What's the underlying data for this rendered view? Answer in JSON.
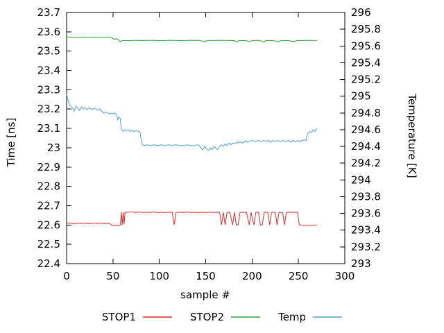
{
  "chart_data": {
    "type": "line",
    "title": "",
    "xlabel": "sample #",
    "ylabel": "Time [ns]",
    "y2label": "Temperature [K]",
    "xlim": [
      0,
      300
    ],
    "ylim": [
      22.4,
      23.7
    ],
    "y2lim": [
      293,
      296
    ],
    "grid": false,
    "legend_position": "bottom-center",
    "x_tick_labels": [
      "0",
      "50",
      "100",
      "150",
      "200",
      "250",
      "300"
    ],
    "x_tick_values": [
      0,
      50,
      100,
      150,
      200,
      250,
      300
    ],
    "y_tick_labels": [
      "22.4",
      "22.5",
      "22.6",
      "22.7",
      "22.8",
      "22.9",
      "23",
      "23.1",
      "23.2",
      "23.3",
      "23.4",
      "23.5",
      "23.6",
      "23.7"
    ],
    "y_tick_values": [
      22.4,
      22.5,
      22.6,
      22.7,
      22.8,
      22.9,
      23.0,
      23.1,
      23.2,
      23.3,
      23.4,
      23.5,
      23.6,
      23.7
    ],
    "y2_tick_labels": [
      "293",
      "293.2",
      "293.4",
      "293.6",
      "293.8",
      "294",
      "294.2",
      "294.4",
      "294.6",
      "294.8",
      "295",
      "295.2",
      "295.4",
      "295.6",
      "295.8",
      "296"
    ],
    "y2_tick_values": [
      293,
      293.2,
      293.4,
      293.6,
      293.8,
      294,
      294.2,
      294.4,
      294.6,
      294.8,
      295,
      295.2,
      295.4,
      295.6,
      295.8,
      296
    ],
    "series": [
      {
        "name": "STOP1",
        "color": "#d62a2a",
        "axis": "y",
        "points": [
          [
            0,
            22.61
          ],
          [
            4,
            22.61
          ],
          [
            8,
            22.605
          ],
          [
            12,
            22.61
          ],
          [
            16,
            22.608
          ],
          [
            20,
            22.61
          ],
          [
            24,
            22.606
          ],
          [
            28,
            22.61
          ],
          [
            32,
            22.608
          ],
          [
            36,
            22.61
          ],
          [
            40,
            22.607
          ],
          [
            44,
            22.61
          ],
          [
            47,
            22.605
          ],
          [
            49,
            22.6
          ],
          [
            51,
            22.596
          ],
          [
            53,
            22.6
          ],
          [
            55,
            22.595
          ],
          [
            57,
            22.6
          ],
          [
            58,
            22.6
          ],
          [
            59,
            22.665
          ],
          [
            60,
            22.6
          ],
          [
            61,
            22.665
          ],
          [
            62,
            22.605
          ],
          [
            63,
            22.665
          ],
          [
            66,
            22.666
          ],
          [
            70,
            22.668
          ],
          [
            74,
            22.665
          ],
          [
            78,
            22.667
          ],
          [
            82,
            22.665
          ],
          [
            86,
            22.666
          ],
          [
            90,
            22.665
          ],
          [
            94,
            22.667
          ],
          [
            98,
            22.665
          ],
          [
            102,
            22.666
          ],
          [
            106,
            22.665
          ],
          [
            110,
            22.666
          ],
          [
            114,
            22.665
          ],
          [
            116,
            22.6
          ],
          [
            118,
            22.665
          ],
          [
            122,
            22.666
          ],
          [
            126,
            22.665
          ],
          [
            130,
            22.667
          ],
          [
            134,
            22.665
          ],
          [
            138,
            22.666
          ],
          [
            142,
            22.665
          ],
          [
            146,
            22.666
          ],
          [
            150,
            22.665
          ],
          [
            154,
            22.666
          ],
          [
            158,
            22.665
          ],
          [
            162,
            22.666
          ],
          [
            165,
            22.665
          ],
          [
            167,
            22.6
          ],
          [
            169,
            22.665
          ],
          [
            171,
            22.6
          ],
          [
            173,
            22.665
          ],
          [
            176,
            22.666
          ],
          [
            179,
            22.6
          ],
          [
            181,
            22.665
          ],
          [
            183,
            22.6
          ],
          [
            185,
            22.6
          ],
          [
            187,
            22.665
          ],
          [
            190,
            22.666
          ],
          [
            194,
            22.665
          ],
          [
            197,
            22.6
          ],
          [
            199,
            22.665
          ],
          [
            202,
            22.6
          ],
          [
            204,
            22.665
          ],
          [
            207,
            22.666
          ],
          [
            209,
            22.6
          ],
          [
            211,
            22.6
          ],
          [
            213,
            22.665
          ],
          [
            217,
            22.666
          ],
          [
            219,
            22.6
          ],
          [
            221,
            22.665
          ],
          [
            225,
            22.666
          ],
          [
            227,
            22.6
          ],
          [
            229,
            22.665
          ],
          [
            233,
            22.665
          ],
          [
            235,
            22.6
          ],
          [
            237,
            22.665
          ],
          [
            241,
            22.666
          ],
          [
            245,
            22.665
          ],
          [
            249,
            22.666
          ],
          [
            251,
            22.6
          ],
          [
            253,
            22.6
          ],
          [
            256,
            22.598
          ],
          [
            259,
            22.6
          ],
          [
            262,
            22.598
          ],
          [
            265,
            22.6
          ],
          [
            268,
            22.599
          ],
          [
            270,
            22.6
          ]
        ]
      },
      {
        "name": "STOP2",
        "color": "#2aa22a",
        "axis": "y",
        "points": [
          [
            0,
            23.575
          ],
          [
            4,
            23.57
          ],
          [
            8,
            23.572
          ],
          [
            12,
            23.57
          ],
          [
            16,
            23.571
          ],
          [
            20,
            23.57
          ],
          [
            24,
            23.572
          ],
          [
            28,
            23.57
          ],
          [
            32,
            23.571
          ],
          [
            36,
            23.57
          ],
          [
            40,
            23.57
          ],
          [
            44,
            23.571
          ],
          [
            48,
            23.57
          ],
          [
            50,
            23.565
          ],
          [
            52,
            23.56
          ],
          [
            54,
            23.565
          ],
          [
            56,
            23.558
          ],
          [
            58,
            23.548
          ],
          [
            60,
            23.555
          ],
          [
            65,
            23.554
          ],
          [
            70,
            23.555
          ],
          [
            75,
            23.556
          ],
          [
            80,
            23.555
          ],
          [
            86,
            23.555
          ],
          [
            92,
            23.556
          ],
          [
            98,
            23.555
          ],
          [
            105,
            23.555
          ],
          [
            112,
            23.556
          ],
          [
            120,
            23.555
          ],
          [
            128,
            23.555
          ],
          [
            136,
            23.556
          ],
          [
            144,
            23.555
          ],
          [
            149,
            23.548
          ],
          [
            151,
            23.555
          ],
          [
            158,
            23.555
          ],
          [
            165,
            23.556
          ],
          [
            172,
            23.555
          ],
          [
            180,
            23.555
          ],
          [
            184,
            23.548
          ],
          [
            186,
            23.555
          ],
          [
            193,
            23.555
          ],
          [
            198,
            23.549
          ],
          [
            200,
            23.555
          ],
          [
            207,
            23.556
          ],
          [
            213,
            23.548
          ],
          [
            215,
            23.555
          ],
          [
            222,
            23.555
          ],
          [
            229,
            23.549
          ],
          [
            231,
            23.555
          ],
          [
            238,
            23.555
          ],
          [
            246,
            23.549
          ],
          [
            248,
            23.555
          ],
          [
            255,
            23.555
          ],
          [
            262,
            23.556
          ],
          [
            270,
            23.555
          ]
        ]
      },
      {
        "name": "Temp",
        "color": "#4aa2d4",
        "axis": "y2",
        "points": [
          [
            0,
            295.02
          ],
          [
            1,
            294.98
          ],
          [
            3,
            294.9
          ],
          [
            5,
            294.88
          ],
          [
            7,
            294.85
          ],
          [
            8,
            294.82
          ],
          [
            10,
            294.88
          ],
          [
            12,
            294.86
          ],
          [
            14,
            294.83
          ],
          [
            16,
            294.87
          ],
          [
            18,
            294.85
          ],
          [
            20,
            294.86
          ],
          [
            22,
            294.84
          ],
          [
            24,
            294.86
          ],
          [
            26,
            294.85
          ],
          [
            28,
            294.84
          ],
          [
            30,
            294.86
          ],
          [
            32,
            294.85
          ],
          [
            34,
            294.83
          ],
          [
            36,
            294.85
          ],
          [
            38,
            294.82
          ],
          [
            40,
            294.8
          ],
          [
            42,
            294.81
          ],
          [
            44,
            294.8
          ],
          [
            46,
            294.79
          ],
          [
            48,
            294.8
          ],
          [
            50,
            294.79
          ],
          [
            52,
            294.8
          ],
          [
            54,
            294.78
          ],
          [
            55,
            294.72
          ],
          [
            56,
            294.75
          ],
          [
            58,
            294.73
          ],
          [
            59,
            294.6
          ],
          [
            61,
            294.58
          ],
          [
            63,
            294.6
          ],
          [
            65,
            294.59
          ],
          [
            67,
            294.6
          ],
          [
            69,
            294.58
          ],
          [
            71,
            294.59
          ],
          [
            73,
            294.58
          ],
          [
            75,
            294.59
          ],
          [
            77,
            294.58
          ],
          [
            79,
            294.57
          ],
          [
            81,
            294.45
          ],
          [
            82,
            294.42
          ],
          [
            84,
            294.41
          ],
          [
            87,
            294.42
          ],
          [
            90,
            294.41
          ],
          [
            94,
            294.42
          ],
          [
            98,
            294.41
          ],
          [
            102,
            294.42
          ],
          [
            106,
            294.41
          ],
          [
            110,
            294.42
          ],
          [
            114,
            294.41
          ],
          [
            118,
            294.42
          ],
          [
            122,
            294.41
          ],
          [
            126,
            294.41
          ],
          [
            130,
            294.42
          ],
          [
            134,
            294.41
          ],
          [
            138,
            294.41
          ],
          [
            142,
            294.42
          ],
          [
            145,
            294.38
          ],
          [
            147,
            294.36
          ],
          [
            149,
            294.4
          ],
          [
            151,
            294.37
          ],
          [
            153,
            294.35
          ],
          [
            155,
            294.38
          ],
          [
            157,
            294.36
          ],
          [
            159,
            294.4
          ],
          [
            161,
            294.38
          ],
          [
            163,
            294.36
          ],
          [
            165,
            294.4
          ],
          [
            167,
            294.42
          ],
          [
            169,
            294.4
          ],
          [
            171,
            294.43
          ],
          [
            173,
            294.41
          ],
          [
            175,
            294.44
          ],
          [
            177,
            294.42
          ],
          [
            179,
            294.44
          ],
          [
            181,
            294.43
          ],
          [
            183,
            294.45
          ],
          [
            185,
            294.44
          ],
          [
            187,
            294.46
          ],
          [
            189,
            294.44
          ],
          [
            191,
            294.45
          ],
          [
            193,
            294.47
          ],
          [
            195,
            294.45
          ],
          [
            197,
            294.46
          ],
          [
            200,
            294.47
          ],
          [
            203,
            294.46
          ],
          [
            206,
            294.47
          ],
          [
            209,
            294.46
          ],
          [
            212,
            294.47
          ],
          [
            215,
            294.46
          ],
          [
            218,
            294.47
          ],
          [
            220,
            294.45
          ],
          [
            222,
            294.47
          ],
          [
            225,
            294.46
          ],
          [
            228,
            294.47
          ],
          [
            231,
            294.46
          ],
          [
            234,
            294.47
          ],
          [
            237,
            294.46
          ],
          [
            240,
            294.47
          ],
          [
            242,
            294.45
          ],
          [
            244,
            294.47
          ],
          [
            247,
            294.46
          ],
          [
            250,
            294.47
          ],
          [
            252,
            294.46
          ],
          [
            254,
            294.47
          ],
          [
            256,
            294.48
          ],
          [
            258,
            294.47
          ],
          [
            260,
            294.55
          ],
          [
            262,
            294.58
          ],
          [
            264,
            294.56
          ],
          [
            266,
            294.6
          ],
          [
            268,
            294.58
          ],
          [
            270,
            294.62
          ]
        ]
      }
    ]
  }
}
